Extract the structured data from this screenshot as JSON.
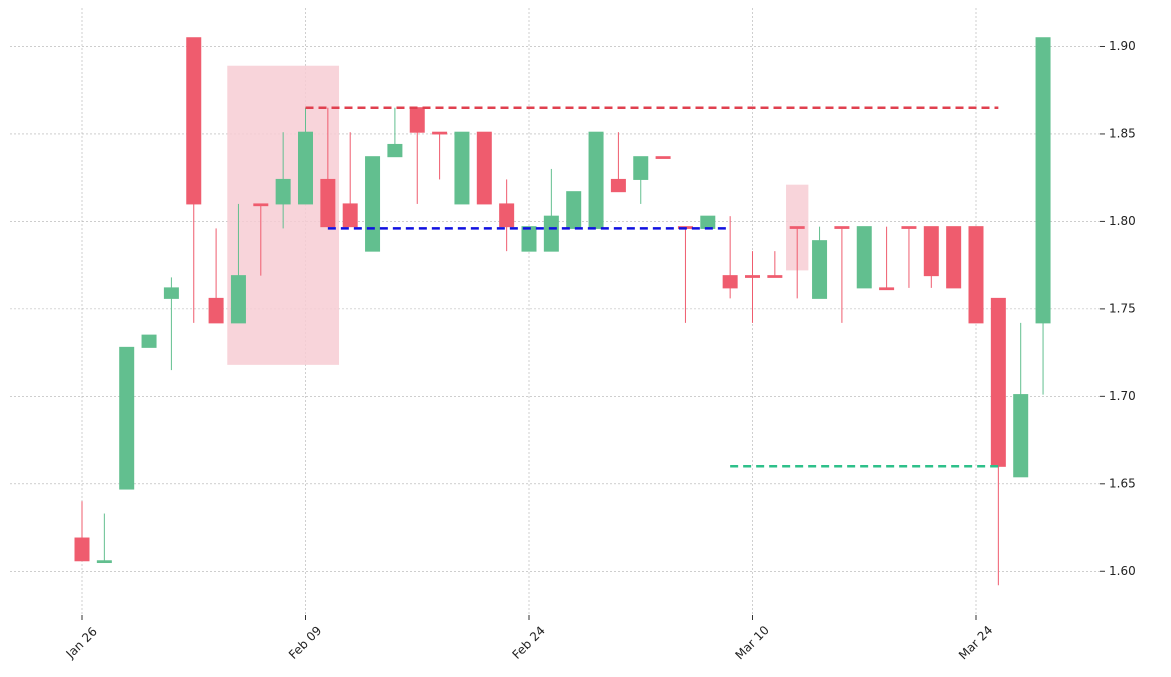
{
  "chart_data": {
    "type": "candlestick",
    "categories": [
      "Jan 26",
      null,
      null,
      null,
      null,
      null,
      null,
      null,
      null,
      null,
      "Feb 09",
      null,
      null,
      null,
      null,
      null,
      null,
      null,
      null,
      null,
      "Feb 24",
      null,
      null,
      null,
      null,
      null,
      null,
      null,
      null,
      null,
      "Mar 10",
      null,
      null,
      null,
      null,
      null,
      null,
      null,
      null,
      null,
      "Mar 24",
      null,
      null,
      null
    ],
    "open": [
      1.619,
      1.605,
      1.647,
      1.728,
      1.756,
      1.905,
      1.756,
      1.742,
      1.81,
      1.81,
      1.81,
      1.824,
      1.81,
      1.783,
      1.837,
      1.865,
      1.851,
      1.81,
      1.851,
      1.81,
      1.783,
      1.783,
      1.796,
      1.796,
      1.824,
      1.824,
      1.837,
      1.797,
      1.796,
      1.769,
      1.769,
      1.769,
      1.797,
      1.756,
      1.797,
      1.762,
      1.762,
      1.797,
      1.797,
      1.797,
      1.797,
      1.756,
      1.654,
      1.742
    ],
    "high": [
      1.64,
      1.633,
      1.728,
      1.735,
      1.768,
      1.905,
      1.796,
      1.81,
      1.81,
      1.851,
      1.865,
      1.865,
      1.851,
      1.837,
      1.865,
      1.865,
      1.851,
      1.851,
      1.851,
      1.824,
      1.797,
      1.83,
      1.817,
      1.851,
      1.851,
      1.837,
      1.837,
      1.797,
      1.803,
      1.803,
      1.783,
      1.783,
      1.797,
      1.797,
      1.797,
      1.797,
      1.797,
      1.797,
      1.797,
      1.797,
      1.797,
      1.756,
      1.742,
      1.905
    ],
    "low": [
      1.606,
      1.605,
      1.647,
      1.728,
      1.715,
      1.742,
      1.742,
      1.742,
      1.769,
      1.796,
      1.81,
      1.797,
      1.797,
      1.783,
      1.837,
      1.81,
      1.824,
      1.81,
      1.81,
      1.783,
      1.783,
      1.783,
      1.796,
      1.796,
      1.817,
      1.81,
      1.836,
      1.742,
      1.796,
      1.756,
      1.742,
      1.768,
      1.756,
      1.756,
      1.742,
      1.762,
      1.762,
      1.762,
      1.762,
      1.762,
      1.742,
      1.592,
      1.654,
      1.701
    ],
    "close": [
      1.606,
      1.606,
      1.728,
      1.735,
      1.762,
      1.81,
      1.742,
      1.769,
      1.809,
      1.824,
      1.851,
      1.797,
      1.797,
      1.837,
      1.844,
      1.851,
      1.85,
      1.851,
      1.81,
      1.797,
      1.797,
      1.803,
      1.817,
      1.851,
      1.817,
      1.837,
      1.836,
      1.796,
      1.803,
      1.762,
      1.768,
      1.768,
      1.796,
      1.789,
      1.796,
      1.797,
      1.761,
      1.796,
      1.769,
      1.762,
      1.742,
      1.66,
      1.701,
      1.905
    ],
    "up_color": "#62bf8f",
    "down_color": "#ef5c6e",
    "zones": [
      {
        "x": [
          6.5,
          11.5
        ],
        "y": [
          1.718,
          1.889
        ],
        "color": "#f7cdd3"
      },
      {
        "x": [
          31.5,
          32.5
        ],
        "y": [
          1.772,
          1.821
        ],
        "color": "#f7cdd3"
      }
    ],
    "levels": [
      {
        "value": 1.865,
        "from": 10,
        "to": 41,
        "color": "#e0404f"
      },
      {
        "value": 1.796,
        "from": 11,
        "to": 29,
        "color": "#1010e0"
      },
      {
        "value": 1.66,
        "from": 29,
        "to": 41,
        "color": "#2ec08a"
      }
    ],
    "ylim": [
      1.575,
      1.922
    ],
    "yticks": [
      {
        "value": 1.6,
        "label": "1.60"
      },
      {
        "value": 1.65,
        "label": "1.65"
      },
      {
        "value": 1.7,
        "label": "1.70"
      },
      {
        "value": 1.75,
        "label": "1.75"
      },
      {
        "value": 1.8,
        "label": "1.80"
      },
      {
        "value": 1.85,
        "label": "1.85"
      },
      {
        "value": 1.9,
        "label": "1.90"
      }
    ],
    "grid": true,
    "y_axis_side": "right"
  }
}
